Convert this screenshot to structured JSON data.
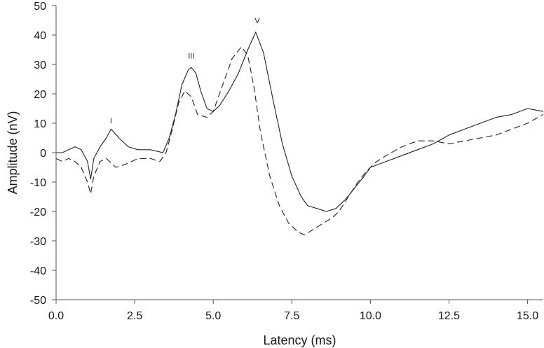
{
  "chart_data": {
    "type": "line",
    "title": "",
    "xlabel": "Latency (ms)",
    "ylabel": "Amplitude (nV)",
    "xlim": [
      0,
      15.5
    ],
    "ylim": [
      -50,
      50
    ],
    "x_ticks": [
      0.0,
      2.5,
      5.0,
      7.5,
      10.0,
      12.5,
      15.0
    ],
    "x_tick_labels": [
      "0.0",
      "2.5",
      "5.0",
      "7.5",
      "10.0",
      "12.5",
      "15.0"
    ],
    "y_ticks": [
      -50,
      -40,
      -30,
      -20,
      -10,
      0,
      10,
      20,
      30,
      40,
      50
    ],
    "y_tick_labels": [
      "-50",
      "-40",
      "-30",
      "-20",
      "-10",
      "0",
      "10",
      "20",
      "30",
      "40",
      "50"
    ],
    "grid": false,
    "legend": "none",
    "annotations": [
      {
        "text": "I",
        "x": 1.75,
        "y": 10
      },
      {
        "text": "III",
        "x": 4.3,
        "y": 32
      },
      {
        "text": "V",
        "x": 6.4,
        "y": 44
      }
    ],
    "series": [
      {
        "style": "solid",
        "x": [
          0.0,
          0.2,
          0.4,
          0.6,
          0.8,
          1.0,
          1.1,
          1.2,
          1.4,
          1.6,
          1.75,
          2.0,
          2.3,
          2.6,
          3.0,
          3.4,
          3.6,
          3.8,
          4.0,
          4.2,
          4.3,
          4.45,
          4.6,
          4.8,
          5.0,
          5.2,
          5.5,
          5.8,
          6.1,
          6.35,
          6.6,
          6.9,
          7.2,
          7.5,
          7.8,
          8.0,
          8.3,
          8.6,
          8.9,
          9.2,
          9.5,
          9.8,
          10.0,
          10.5,
          11.0,
          11.5,
          12.0,
          12.5,
          13.0,
          13.5,
          14.0,
          14.5,
          15.0,
          15.5
        ],
        "y": [
          0,
          0,
          1,
          2,
          1,
          -3,
          -9,
          -2,
          2,
          5,
          8,
          5,
          2,
          1,
          1,
          0,
          5,
          13,
          23,
          28,
          29,
          27,
          21,
          15,
          14,
          16,
          21,
          27,
          35,
          41,
          34,
          18,
          3,
          -8,
          -15,
          -18,
          -19,
          -20,
          -19,
          -16,
          -12,
          -8,
          -5,
          -3,
          -1,
          1,
          3,
          6,
          8,
          10,
          12,
          13,
          15,
          14
        ]
      },
      {
        "style": "dashed",
        "x": [
          0.0,
          0.2,
          0.4,
          0.6,
          0.8,
          1.0,
          1.1,
          1.2,
          1.4,
          1.6,
          1.9,
          2.2,
          2.6,
          3.0,
          3.3,
          3.5,
          3.7,
          3.9,
          4.1,
          4.3,
          4.5,
          4.8,
          5.0,
          5.3,
          5.6,
          5.9,
          6.1,
          6.3,
          6.5,
          6.8,
          7.1,
          7.4,
          7.7,
          7.9,
          8.2,
          8.5,
          8.8,
          9.0,
          9.3,
          9.6,
          9.9,
          10.2,
          10.5,
          11.0,
          11.5,
          12.0,
          12.5,
          13.0,
          13.5,
          14.0,
          14.5,
          15.0,
          15.5
        ],
        "y": [
          -2,
          -3,
          -2,
          -3,
          -5,
          -10,
          -14,
          -8,
          -3,
          -2,
          -5,
          -4,
          -2,
          -2,
          -3,
          0,
          8,
          17,
          21,
          19,
          13,
          12,
          14,
          23,
          32,
          36,
          33,
          22,
          7,
          -8,
          -18,
          -24,
          -27,
          -28,
          -26,
          -24,
          -22,
          -20,
          -15,
          -10,
          -6,
          -3,
          -1,
          2,
          4,
          4,
          3,
          4,
          5,
          6,
          8,
          10,
          13
        ]
      }
    ]
  }
}
